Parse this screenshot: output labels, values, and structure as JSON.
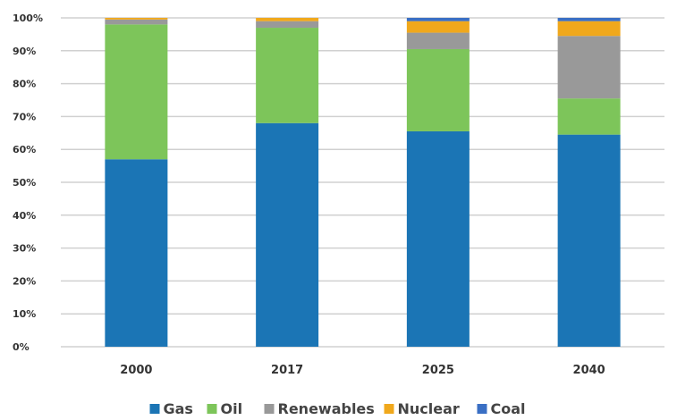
{
  "chart_data": {
    "type": "bar",
    "stacked": true,
    "categories": [
      "2000",
      "2017",
      "2025",
      "2040"
    ],
    "series": [
      {
        "name": "Gas",
        "color": "#1b75b5",
        "values": [
          57,
          68,
          65.5,
          64.5
        ]
      },
      {
        "name": "Oil",
        "color": "#7dc55a",
        "values": [
          41,
          29,
          25,
          11
        ]
      },
      {
        "name": "Renewables",
        "color": "#999999",
        "values": [
          1.5,
          2,
          5,
          19
        ]
      },
      {
        "name": "Nuclear",
        "color": "#f0a81c",
        "values": [
          0.5,
          1,
          3.5,
          4.5
        ]
      },
      {
        "name": "Coal",
        "color": "#3a6fc4",
        "values": [
          0,
          0,
          1,
          1
        ]
      }
    ],
    "y_ticks": [
      "0%",
      "10%",
      "20%",
      "30%",
      "40%",
      "50%",
      "60%",
      "70%",
      "80%",
      "90%",
      "100%"
    ],
    "ylim": [
      0,
      100
    ],
    "grid": true,
    "legend_position": "bottom"
  }
}
